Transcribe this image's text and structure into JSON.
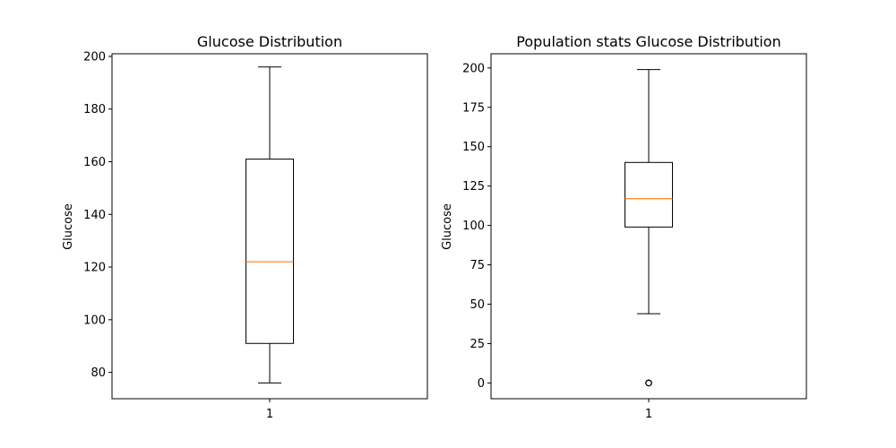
{
  "chart_data": [
    {
      "type": "box",
      "title": "Glucose Distribution",
      "ylabel": "Glucose",
      "categories": [
        "1"
      ],
      "ylim": [
        70,
        201
      ],
      "yticks": [
        80,
        100,
        120,
        140,
        160,
        180,
        200
      ],
      "box": {
        "whisker_low": 76,
        "q1": 91,
        "median": 122,
        "q3": 161,
        "whisker_high": 196,
        "outliers": []
      },
      "colors": {
        "box": "#000000",
        "median": "#ff7f0e"
      }
    },
    {
      "type": "box",
      "title": "Population stats Glucose Distribution",
      "ylabel": "Glucose",
      "categories": [
        "1"
      ],
      "ylim": [
        -10,
        209
      ],
      "yticks": [
        0,
        25,
        50,
        75,
        100,
        125,
        150,
        175,
        200
      ],
      "box": {
        "whisker_low": 44,
        "q1": 99,
        "median": 117,
        "q3": 140,
        "whisker_high": 199,
        "outliers": [
          0,
          0,
          0,
          0,
          0
        ]
      },
      "colors": {
        "box": "#000000",
        "median": "#ff7f0e"
      }
    }
  ]
}
